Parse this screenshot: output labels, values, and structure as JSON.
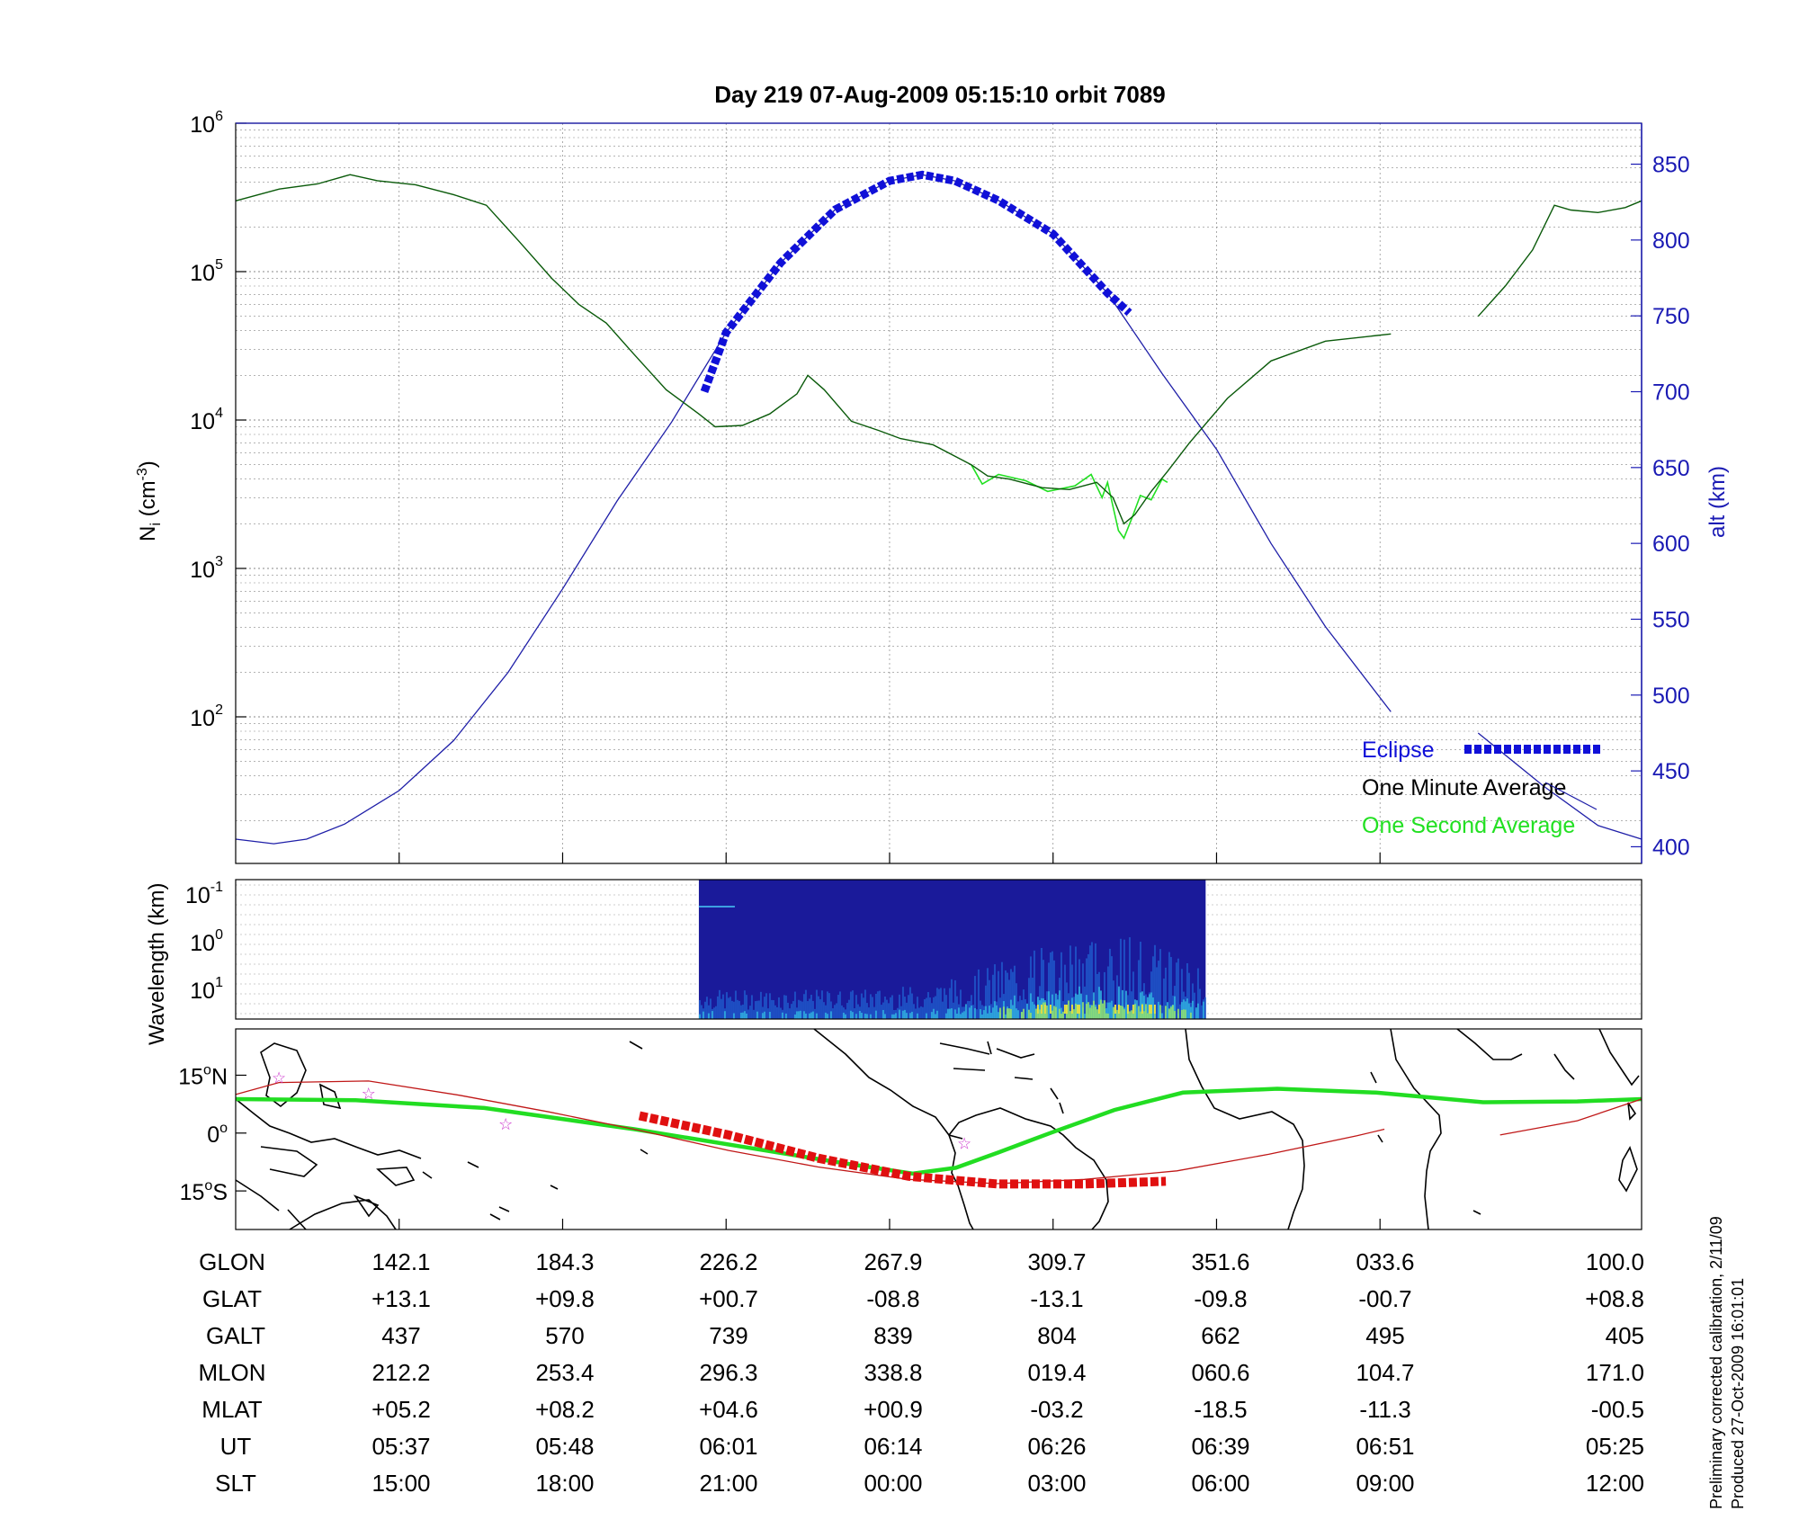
{
  "title": "Day 219  07-Aug-2009 05:15:10   orbit 7089",
  "side_note_1": "Preliminary corrected calibration, 2/11/09",
  "side_note_2": "Produced 27-Oct-2009 16:01:01",
  "colors": {
    "axis_right": "#1a1ab4",
    "alt_line": "#1f1fa8",
    "eclipse": "#1010d8",
    "one_min": "#0a5a0a",
    "one_sec": "#22e022",
    "track_thin": "#c01818",
    "eclipse_track": "#e01010",
    "mag_eq": "#22dd22",
    "star": "#cc33cc"
  },
  "chart_data": [
    {
      "type": "line",
      "name": "density",
      "title": "Day 219  07-Aug-2009 05:15:10   orbit 7089",
      "ylabel_left": "N_i (cm^-3)",
      "ylabel_right": "alt (km)",
      "yscale_left": "log",
      "ylim_left": [
        10,
        1000000
      ],
      "left_ticks": [
        {
          "base": "10",
          "exp": "6",
          "value": 1000000
        },
        {
          "base": "10",
          "exp": "5",
          "value": 100000
        },
        {
          "base": "10",
          "exp": "4",
          "value": 10000
        },
        {
          "base": "10",
          "exp": "3",
          "value": 1000
        },
        {
          "base": "10",
          "exp": "2",
          "value": 100
        }
      ],
      "ylim_right": [
        389,
        877
      ],
      "right_ticks": [
        "850",
        "800",
        "750",
        "700",
        "650",
        "600",
        "550",
        "500",
        "450",
        "400"
      ],
      "grid": true,
      "legend": {
        "position": "bottom-right",
        "entries": [
          {
            "label": "Eclipse",
            "color": "#1010d8"
          },
          {
            "label": "One Minute Average",
            "color": "#000000"
          },
          {
            "label": "One Second Average",
            "color": "#22e022"
          }
        ]
      },
      "x_ticks_slt": [
        15,
        18,
        21,
        24,
        27,
        30,
        33
      ],
      "series": [
        {
          "name": "One Minute Average",
          "segments": [
            [
              [
                12.0,
                300000
              ],
              [
                12.8,
                360000
              ],
              [
                13.5,
                390000
              ],
              [
                14.1,
                450000
              ],
              [
                14.6,
                410000
              ],
              [
                15.3,
                385000
              ],
              [
                16.0,
                330000
              ],
              [
                16.6,
                280000
              ],
              [
                17.2,
                160000
              ],
              [
                17.8,
                90000
              ],
              [
                18.3,
                60000
              ],
              [
                18.8,
                45000
              ],
              [
                19.3,
                28000
              ],
              [
                19.9,
                16000
              ],
              [
                20.5,
                11000
              ],
              [
                20.8,
                9000
              ],
              [
                21.3,
                9200
              ],
              [
                21.8,
                11000
              ],
              [
                22.3,
                15000
              ],
              [
                22.5,
                20000
              ],
              [
                22.8,
                16000
              ],
              [
                23.3,
                9800
              ],
              [
                23.8,
                8500
              ],
              [
                24.2,
                7500
              ],
              [
                24.8,
                6800
              ],
              [
                25.5,
                5000
              ],
              [
                25.8,
                4200
              ],
              [
                26.2,
                4000
              ],
              [
                26.8,
                3500
              ],
              [
                27.3,
                3400
              ],
              [
                27.8,
                3800
              ],
              [
                28.1,
                3000
              ],
              [
                28.3,
                2000
              ],
              [
                28.5,
                2300
              ],
              [
                28.8,
                3300
              ],
              [
                29.1,
                4500
              ],
              [
                29.5,
                7000
              ],
              [
                30.2,
                14000
              ],
              [
                31.0,
                25000
              ],
              [
                32.0,
                34000
              ],
              [
                33.2,
                38000
              ]
            ],
            [
              [
                34.8,
                50000
              ],
              [
                35.3,
                80000
              ],
              [
                35.8,
                140000
              ],
              [
                36.2,
                280000
              ],
              [
                36.5,
                260000
              ],
              [
                37.0,
                250000
              ],
              [
                37.5,
                270000
              ],
              [
                37.8,
                300000
              ]
            ]
          ]
        },
        {
          "name": "One Second Average",
          "segments": [
            [
              [
                25.5,
                5000
              ],
              [
                25.7,
                3700
              ],
              [
                26.0,
                4300
              ],
              [
                26.5,
                3900
              ],
              [
                26.9,
                3300
              ],
              [
                27.4,
                3600
              ],
              [
                27.7,
                4300
              ],
              [
                27.9,
                3000
              ],
              [
                28.0,
                3800
              ],
              [
                28.2,
                1800
              ],
              [
                28.3,
                1600
              ],
              [
                28.45,
                2200
              ],
              [
                28.6,
                3100
              ],
              [
                28.8,
                2900
              ],
              [
                29.0,
                4000
              ],
              [
                29.1,
                3800
              ]
            ]
          ]
        },
        {
          "name": "alt (km)",
          "segments": [
            [
              [
                12.0,
                405
              ],
              [
                12.7,
                402
              ],
              [
                13.3,
                405
              ],
              [
                14.0,
                415
              ],
              [
                15.0,
                437
              ],
              [
                16.0,
                470
              ],
              [
                17.0,
                515
              ],
              [
                18.0,
                570
              ],
              [
                19.0,
                628
              ],
              [
                20.0,
                680
              ],
              [
                21.0,
                739
              ],
              [
                22.0,
                785
              ],
              [
                23.0,
                820
              ],
              [
                24.0,
                839
              ],
              [
                24.6,
                843
              ],
              [
                25.2,
                839
              ],
              [
                26.0,
                826
              ],
              [
                27.0,
                804
              ],
              [
                28.0,
                765
              ],
              [
                29.0,
                712
              ],
              [
                30.0,
                662
              ],
              [
                31.0,
                600
              ],
              [
                32.0,
                545
              ],
              [
                33.2,
                489
              ]
            ],
            [
              [
                34.8,
                475
              ],
              [
                36.0,
                440
              ],
              [
                37.0,
                414
              ],
              [
                37.8,
                405
              ]
            ]
          ]
        }
      ],
      "eclipse_alt_segment": [
        [
          20.6,
          700
        ],
        [
          21.0,
          739
        ],
        [
          22.0,
          785
        ],
        [
          23.0,
          820
        ],
        [
          24.0,
          839
        ],
        [
          24.6,
          843
        ],
        [
          25.2,
          839
        ],
        [
          26.0,
          826
        ],
        [
          27.0,
          804
        ],
        [
          28.0,
          765
        ],
        [
          28.4,
          752
        ]
      ],
      "note": "x axis is solar local time in hours (15:00 to 12:00 next day shown as 15..36)"
    },
    {
      "type": "heatmap",
      "name": "wavelength",
      "ylabel": "Wavelength (km)",
      "yscale": "log",
      "y_ticks": [
        {
          "base": "10",
          "exp": "-1"
        },
        {
          "base": "10",
          "exp": "0"
        },
        {
          "base": "10",
          "exp": "1"
        }
      ],
      "data_x_range": [
        20.5,
        29.8
      ],
      "colormap": [
        "#1a1a9a",
        "#2060d0",
        "#30b0e0",
        "#90e070",
        "#e8e040"
      ]
    },
    {
      "type": "line",
      "name": "map",
      "y_ticks": [
        {
          "deg": "15",
          "sfx": "N"
        },
        {
          "deg": "0",
          "sfx": ""
        },
        {
          "deg": "15",
          "sfx": "S"
        }
      ],
      "ylim": [
        -25,
        27
      ],
      "lon_start": 132,
      "lon_span": 328,
      "series": [
        {
          "name": "satellite_track",
          "points": [
            [
              132,
              10
            ],
            [
              142.1,
              13.1
            ],
            [
              163,
              13.5
            ],
            [
              184.3,
              9.8
            ],
            [
              205,
              5.5
            ],
            [
              226.2,
              0.7
            ],
            [
              247,
              -4.5
            ],
            [
              267.9,
              -8.8
            ],
            [
              289,
              -12
            ],
            [
              309.7,
              -13.1
            ],
            [
              330,
              -12
            ],
            [
              351.6,
              -9.8
            ],
            [
              373,
              -5.5
            ],
            [
              393.6,
              -0.7
            ],
            [
              400,
              1
            ]
          ]
        },
        {
          "name": "satellite_track_2",
          "points": [
            [
              427,
              -0.5
            ],
            [
              445,
              3.2
            ],
            [
              460,
              8.8
            ]
          ]
        },
        {
          "name": "eclipse_track",
          "points": [
            [
              226.2,
              4.5
            ],
            [
              247,
              -0.5
            ],
            [
              267.9,
              -6.5
            ],
            [
              289,
              -11.2
            ],
            [
              309.7,
              -13.2
            ],
            [
              330,
              -13.2
            ],
            [
              349,
              -12.5
            ]
          ]
        },
        {
          "name": "magnetic_equator",
          "points": [
            [
              132,
              8.8
            ],
            [
              160,
              8.5
            ],
            [
              190,
              6.5
            ],
            [
              225,
              1.0
            ],
            [
              250,
              -3.5
            ],
            [
              275,
              -8
            ],
            [
              290,
              -10.5
            ],
            [
              300,
              -9
            ],
            [
              310,
              -5
            ],
            [
              322,
              0
            ],
            [
              337,
              6
            ],
            [
              353,
              10.5
            ],
            [
              375,
              11.5
            ],
            [
              398,
              10.5
            ],
            [
              423,
              8.0
            ],
            [
              445,
              8.2
            ],
            [
              460,
              8.8
            ]
          ]
        }
      ],
      "stars": [
        [
          142.1,
          14.5
        ],
        [
          163,
          10.5
        ],
        [
          195,
          2.5
        ],
        [
          302,
          -2.5
        ]
      ]
    }
  ],
  "table": {
    "labels": [
      "GLON",
      "GLAT",
      "GALT",
      "MLON",
      "MLAT",
      "UT",
      "SLT"
    ],
    "columns": [
      [
        "142.1",
        "+13.1",
        "437",
        "212.2",
        "+05.2",
        "05:37",
        "15:00"
      ],
      [
        "184.3",
        "+09.8",
        "570",
        "253.4",
        "+08.2",
        "05:48",
        "18:00"
      ],
      [
        "226.2",
        "+00.7",
        "739",
        "296.3",
        "+04.6",
        "06:01",
        "21:00"
      ],
      [
        "267.9",
        "-08.8",
        "839",
        "338.8",
        "+00.9",
        "06:14",
        "00:00"
      ],
      [
        "309.7",
        "-13.1",
        "804",
        "019.4",
        "-03.2",
        "06:26",
        "03:00"
      ],
      [
        "351.6",
        "-09.8",
        "662",
        "060.6",
        "-18.5",
        "06:39",
        "06:00"
      ],
      [
        "033.6",
        "-00.7",
        "495",
        "104.7",
        "-11.3",
        "06:51",
        "09:00"
      ],
      [
        "100.0",
        "+08.8",
        "405",
        "171.0",
        "-00.5",
        "05:25",
        "12:00"
      ]
    ]
  }
}
